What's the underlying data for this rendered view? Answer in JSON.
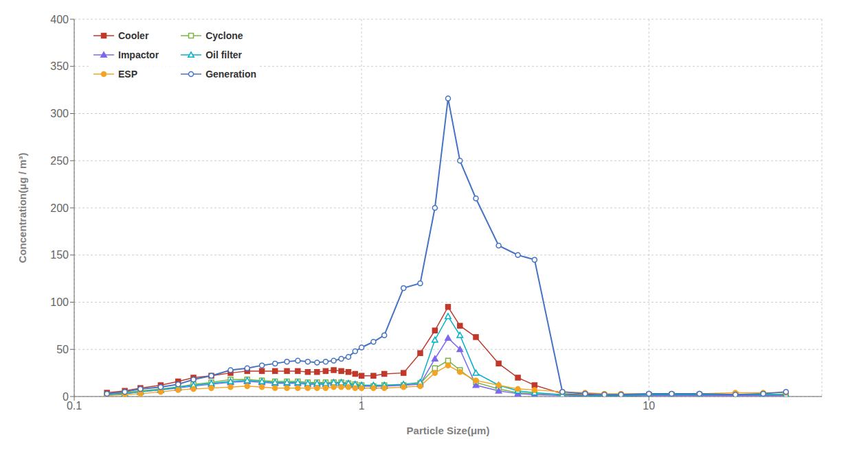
{
  "chart_data": {
    "type": "line",
    "xlabel": "Particle Size(μm)",
    "ylabel": "Concentration(μg / m³)",
    "log": "x",
    "grid": true,
    "legend": "upper left",
    "xlim": [
      0.1,
      40
    ],
    "xticks": [
      0.1,
      1,
      10
    ],
    "ylim": [
      0,
      400
    ],
    "yticks": [
      0,
      50,
      100,
      150,
      200,
      250,
      300,
      350,
      400
    ],
    "x": [
      0.13,
      0.15,
      0.17,
      0.2,
      0.23,
      0.26,
      0.3,
      0.35,
      0.4,
      0.45,
      0.5,
      0.55,
      0.6,
      0.65,
      0.7,
      0.75,
      0.8,
      0.85,
      0.9,
      0.95,
      1.0,
      1.1,
      1.2,
      1.4,
      1.6,
      1.8,
      2.0,
      2.2,
      2.5,
      3.0,
      3.5,
      4.0,
      5.0,
      6.0,
      7.0,
      8.0,
      10.0,
      12.0,
      15.0,
      20.0,
      25.0,
      30.0
    ],
    "series": [
      {
        "name": "Cooler",
        "color": "#C0392B",
        "marker": "square",
        "values": [
          4,
          6,
          9,
          12,
          16,
          20,
          22,
          25,
          27,
          27,
          27,
          27,
          27,
          26,
          26,
          27,
          28,
          27,
          26,
          24,
          22,
          22,
          24,
          25,
          46,
          70,
          95,
          75,
          63,
          35,
          20,
          12,
          3,
          2,
          1,
          1,
          2,
          2,
          2,
          2,
          2,
          2
        ]
      },
      {
        "name": "Cyclone",
        "color": "#7CB342",
        "marker": "square_open",
        "values": [
          2,
          4,
          6,
          8,
          10,
          13,
          15,
          18,
          18,
          17,
          16,
          16,
          16,
          15,
          15,
          15,
          15,
          15,
          14,
          13,
          12,
          11,
          12,
          12,
          14,
          30,
          38,
          28,
          15,
          8,
          4,
          3,
          2,
          1,
          1,
          1,
          2,
          2,
          2,
          2,
          2,
          2
        ]
      },
      {
        "name": "Impactor",
        "color": "#7B68EE",
        "marker": "triangle",
        "values": [
          2,
          3,
          5,
          7,
          9,
          11,
          13,
          15,
          16,
          15,
          14,
          14,
          14,
          13,
          13,
          13,
          14,
          14,
          13,
          12,
          11,
          11,
          11,
          12,
          13,
          40,
          62,
          50,
          12,
          6,
          3,
          2,
          1,
          0,
          0,
          0,
          1,
          1,
          1,
          1,
          1,
          1
        ]
      },
      {
        "name": "Oil filter",
        "color": "#00B0C8",
        "marker": "triangle_open",
        "values": [
          2,
          3,
          5,
          7,
          10,
          12,
          14,
          16,
          17,
          16,
          15,
          15,
          15,
          14,
          14,
          14,
          15,
          15,
          14,
          13,
          12,
          12,
          12,
          13,
          15,
          60,
          85,
          65,
          25,
          12,
          6,
          4,
          2,
          1,
          1,
          1,
          2,
          2,
          2,
          2,
          2,
          2
        ]
      },
      {
        "name": "ESP",
        "color": "#F4A423",
        "marker": "circle",
        "values": [
          1,
          2,
          3,
          5,
          7,
          8,
          9,
          10,
          11,
          10,
          9,
          9,
          9,
          9,
          9,
          9,
          10,
          10,
          10,
          9,
          9,
          9,
          9,
          10,
          11,
          25,
          33,
          26,
          17,
          12,
          8,
          7,
          5,
          4,
          3,
          3,
          3,
          3,
          3,
          4,
          4,
          4
        ]
      },
      {
        "name": "Generation",
        "color": "#4472C4",
        "marker": "circle_open",
        "values": [
          3,
          5,
          8,
          10,
          13,
          18,
          22,
          28,
          30,
          33,
          35,
          37,
          38,
          37,
          36,
          37,
          38,
          40,
          42,
          48,
          52,
          58,
          65,
          115,
          120,
          200,
          316,
          250,
          210,
          160,
          150,
          145,
          5,
          3,
          2,
          2,
          3,
          3,
          3,
          2,
          3,
          5
        ]
      }
    ]
  }
}
